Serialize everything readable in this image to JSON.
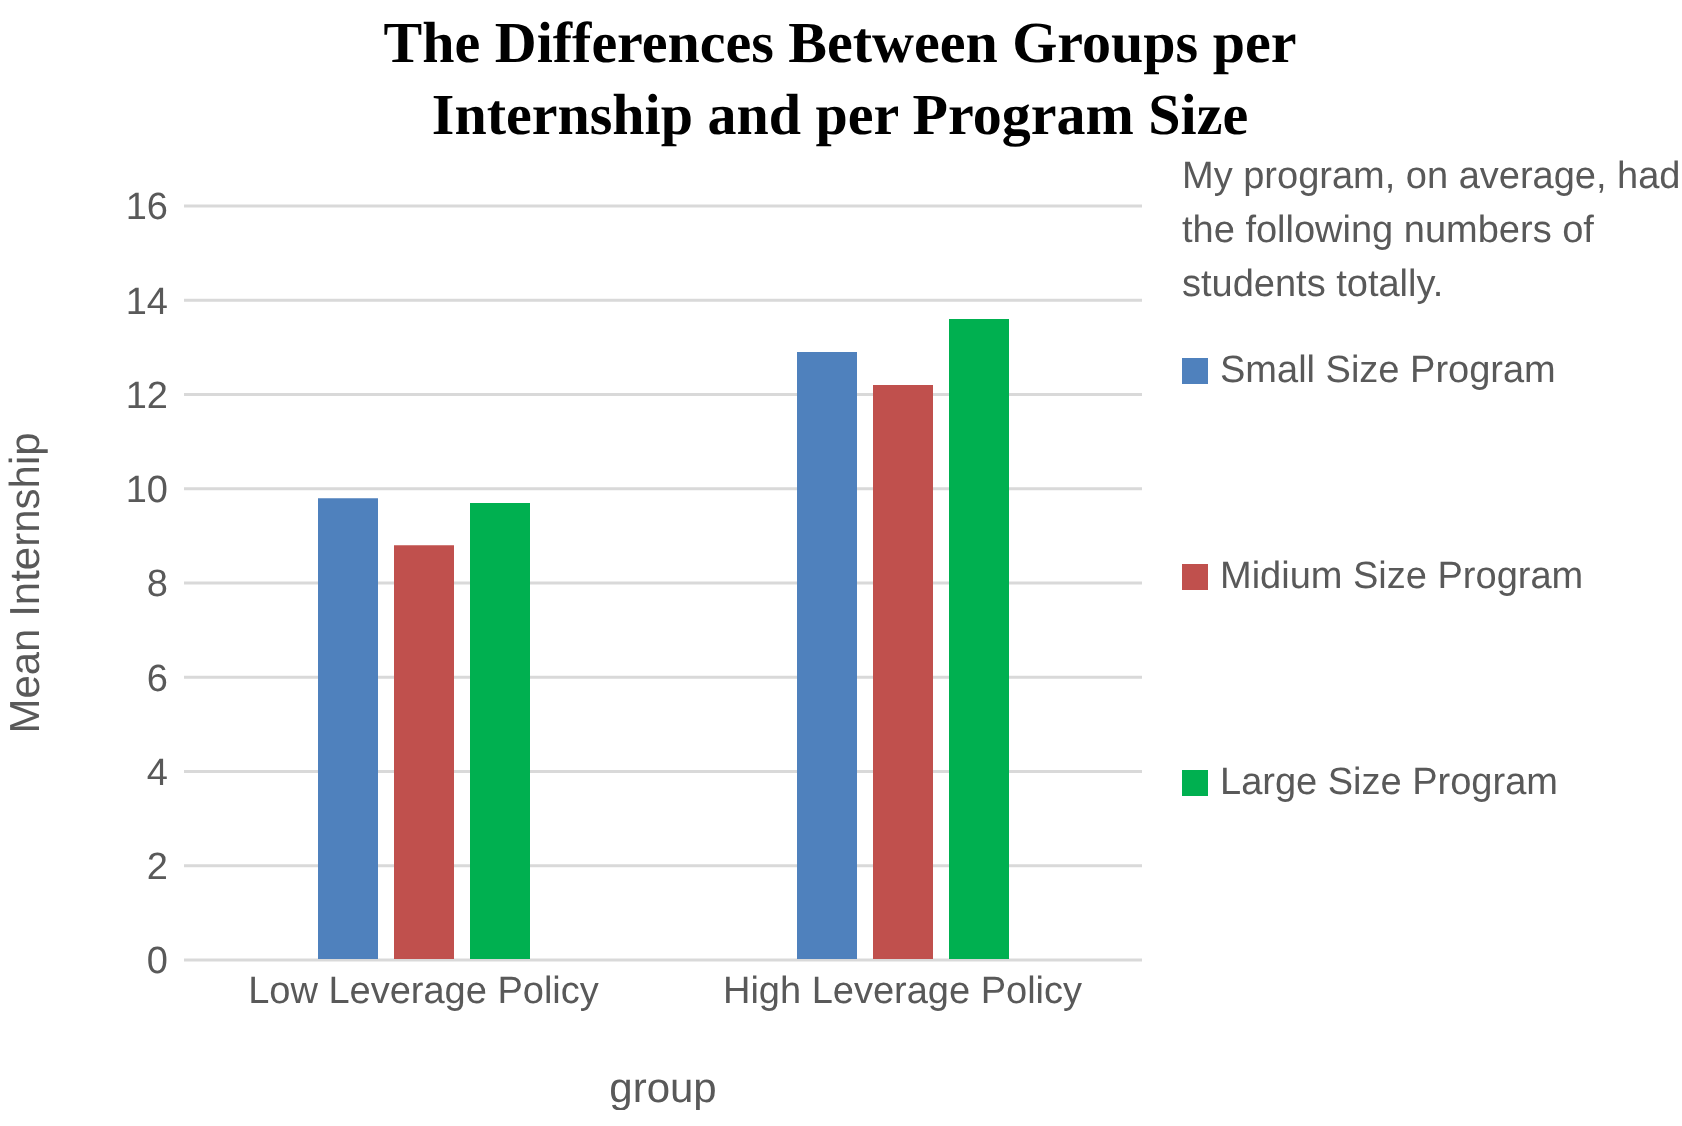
{
  "chart_data": {
    "type": "bar",
    "title": "The Differences Between Groups per Internship and per Program Size",
    "xlabel": "group",
    "ylabel": "Mean Internship",
    "legend_title": "My program, on average, had the following numbers of students totally.",
    "categories": [
      "Low Leverage Policy",
      "High Leverage Policy"
    ],
    "series": [
      {
        "name": "Small Size Program",
        "color": "#4f81bd",
        "values": [
          9.8,
          12.9
        ]
      },
      {
        "name": "Midium Size Program",
        "color": "#c0504d",
        "values": [
          8.8,
          12.2
        ]
      },
      {
        "name": "Large Size Program",
        "color": "#00b050",
        "values": [
          9.7,
          13.6
        ]
      }
    ],
    "ylim": [
      0,
      16
    ],
    "yticks": [
      0,
      2,
      4,
      6,
      8,
      10,
      12,
      14,
      16
    ],
    "grid": "y",
    "legend": "right"
  }
}
